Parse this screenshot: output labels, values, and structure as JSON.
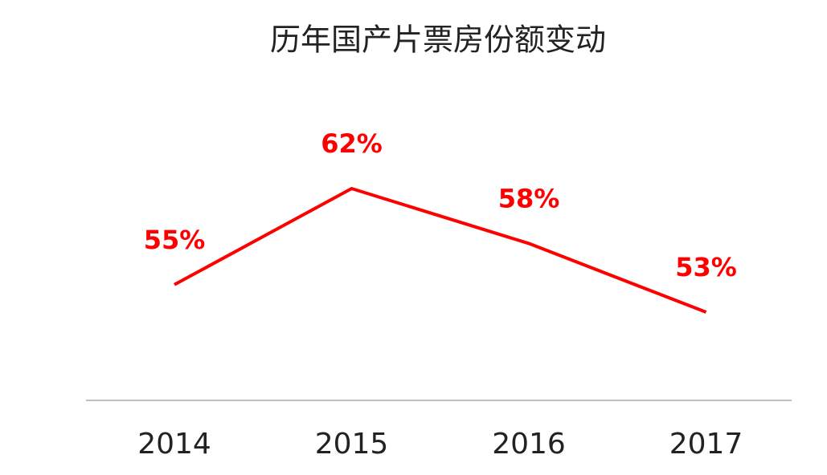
{
  "chart_data": {
    "type": "line",
    "title": "历年国产片票房份额变动",
    "categories": [
      "2014",
      "2015",
      "2016",
      "2017"
    ],
    "series": [
      {
        "color": "#ff0000",
        "values": [
          55,
          62,
          58,
          53
        ],
        "value_labels": [
          "55%",
          "62%",
          "58%",
          "53%"
        ]
      }
    ]
  }
}
